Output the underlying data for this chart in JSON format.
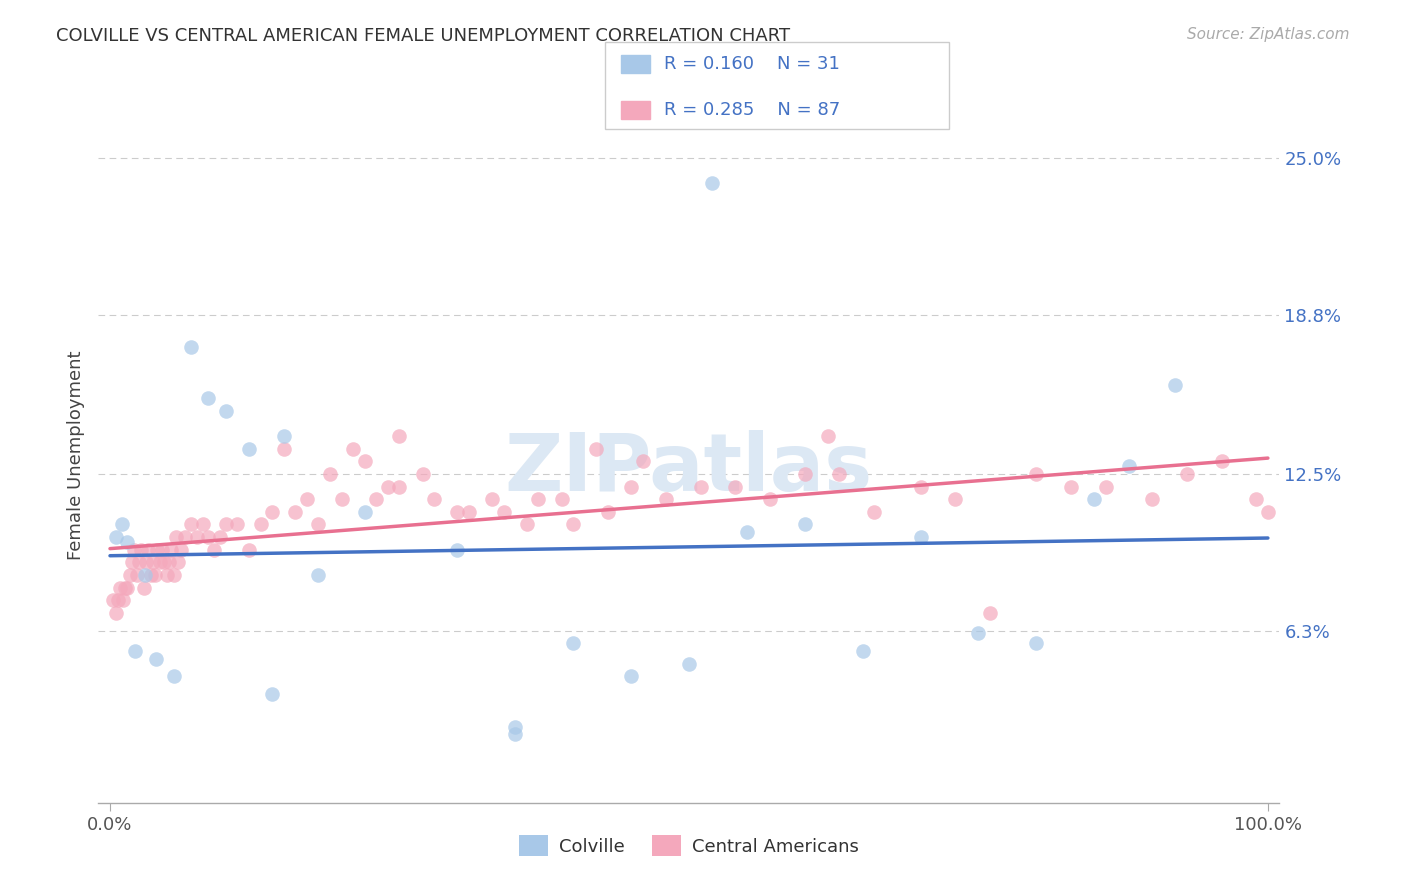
{
  "title": "COLVILLE VS CENTRAL AMERICAN FEMALE UNEMPLOYMENT CORRELATION CHART",
  "source": "Source: ZipAtlas.com",
  "ylabel": "Female Unemployment",
  "ytick_values": [
    6.3,
    12.5,
    18.8,
    25.0
  ],
  "xlim": [
    0,
    100
  ],
  "ylim": [
    0,
    27
  ],
  "colville_color": "#a8c8e8",
  "central_color": "#f4a8bc",
  "colville_line_color": "#4472c4",
  "central_line_color": "#e87090",
  "legend_text_color": "#4472c4",
  "background_color": "#ffffff",
  "grid_color": "#cccccc",
  "watermark_color": "#dce8f4",
  "colville_x": [
    0.5,
    1.0,
    1.5,
    2.2,
    3.0,
    4.0,
    5.5,
    7.0,
    8.5,
    10.0,
    12.0,
    14.0,
    15.0,
    18.0,
    22.0,
    30.0,
    35.0,
    40.0,
    45.0,
    50.0,
    52.0,
    55.0,
    60.0,
    65.0,
    70.0,
    75.0,
    80.0,
    85.0,
    88.0,
    92.0,
    35.0
  ],
  "colville_y": [
    10.0,
    10.5,
    9.8,
    5.5,
    8.5,
    5.2,
    4.5,
    17.5,
    15.5,
    15.0,
    13.5,
    3.8,
    14.0,
    8.5,
    11.0,
    9.5,
    2.5,
    5.8,
    4.5,
    5.0,
    24.0,
    10.2,
    10.5,
    5.5,
    10.0,
    6.2,
    5.8,
    11.5,
    12.8,
    16.0,
    2.2
  ],
  "central_x": [
    0.3,
    0.5,
    0.7,
    0.9,
    1.1,
    1.3,
    1.5,
    1.7,
    1.9,
    2.1,
    2.3,
    2.5,
    2.7,
    2.9,
    3.1,
    3.3,
    3.5,
    3.7,
    3.9,
    4.1,
    4.3,
    4.5,
    4.7,
    4.9,
    5.1,
    5.3,
    5.5,
    5.7,
    5.9,
    6.1,
    6.5,
    7.0,
    7.5,
    8.0,
    8.5,
    9.0,
    9.5,
    10.0,
    11.0,
    12.0,
    13.0,
    14.0,
    15.0,
    16.0,
    17.0,
    18.0,
    19.0,
    20.0,
    21.0,
    22.0,
    23.0,
    24.0,
    25.0,
    27.0,
    30.0,
    33.0,
    36.0,
    39.0,
    42.0,
    45.0,
    48.0,
    51.0,
    54.0,
    57.0,
    60.0,
    63.0,
    66.0,
    70.0,
    73.0,
    76.0,
    80.0,
    83.0,
    86.0,
    90.0,
    93.0,
    96.0,
    99.0,
    100.0,
    25.0,
    28.0,
    31.0,
    34.0,
    37.0,
    40.0,
    43.0,
    46.0,
    62.0
  ],
  "central_y": [
    7.5,
    7.0,
    7.5,
    8.0,
    7.5,
    8.0,
    8.0,
    8.5,
    9.0,
    9.5,
    8.5,
    9.0,
    9.5,
    8.0,
    9.0,
    9.5,
    8.5,
    9.0,
    8.5,
    9.5,
    9.0,
    9.5,
    9.0,
    8.5,
    9.0,
    9.5,
    8.5,
    10.0,
    9.0,
    9.5,
    10.0,
    10.5,
    10.0,
    10.5,
    10.0,
    9.5,
    10.0,
    10.5,
    10.5,
    9.5,
    10.5,
    11.0,
    13.5,
    11.0,
    11.5,
    10.5,
    12.5,
    11.5,
    13.5,
    13.0,
    11.5,
    12.0,
    14.0,
    12.5,
    11.0,
    11.5,
    10.5,
    11.5,
    13.5,
    12.0,
    11.5,
    12.0,
    12.0,
    11.5,
    12.5,
    12.5,
    11.0,
    12.0,
    11.5,
    7.0,
    12.5,
    12.0,
    12.0,
    11.5,
    12.5,
    13.0,
    11.5,
    11.0,
    12.0,
    11.5,
    11.0,
    11.0,
    11.5,
    10.5,
    11.0,
    13.0,
    14.0
  ]
}
